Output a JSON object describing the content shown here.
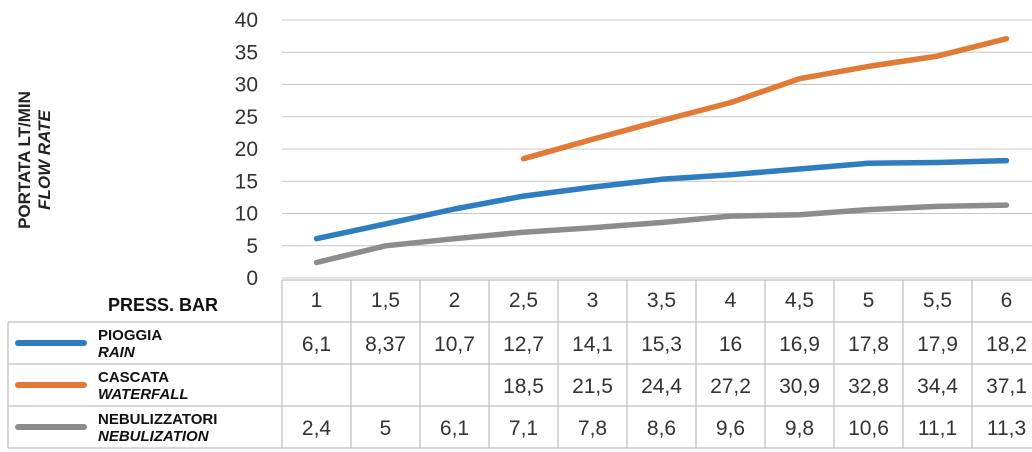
{
  "chart_data": {
    "type": "line",
    "ylabel": "PORTATA  LT/MIN",
    "ylabel_sub": "FLOW RATE",
    "xlabel": "PRESS. BAR",
    "ylim": [
      0,
      40
    ],
    "yticks": [
      "0",
      "5",
      "10",
      "15",
      "20",
      "25",
      "30",
      "35",
      "40"
    ],
    "grid": true,
    "categories": [
      "1",
      "1,5",
      "2",
      "2,5",
      "3",
      "3,5",
      "4",
      "4,5",
      "5",
      "5,5",
      "6"
    ],
    "x": [
      1,
      1.5,
      2,
      2.5,
      3,
      3.5,
      4,
      4.5,
      5,
      5.5,
      6
    ],
    "series": [
      {
        "name": "PIOGGIA",
        "name_en": "RAIN",
        "color": "#2E7DC1",
        "values": [
          6.1,
          8.37,
          10.7,
          12.7,
          14.1,
          15.3,
          16,
          16.9,
          17.8,
          17.9,
          18.2
        ],
        "labels": [
          "6,1",
          "8,37",
          "10,7",
          "12,7",
          "14,1",
          "15,3",
          "16",
          "16,9",
          "17,8",
          "17,9",
          "18,2"
        ]
      },
      {
        "name": "CASCATA",
        "name_en": "WATERFALL",
        "color": "#E07A34",
        "values": [
          null,
          null,
          null,
          18.5,
          21.5,
          24.4,
          27.2,
          30.9,
          32.8,
          34.4,
          37.1
        ],
        "labels": [
          "",
          "",
          "",
          "18,5",
          "21,5",
          "24,4",
          "27,2",
          "30,9",
          "32,8",
          "34,4",
          "37,1"
        ]
      },
      {
        "name": "NEBULIZZATORI",
        "name_en": "NEBULIZATION",
        "color": "#8C8C8C",
        "values": [
          2.4,
          5,
          6.1,
          7.1,
          7.8,
          8.6,
          9.6,
          9.8,
          10.6,
          11.1,
          11.3
        ],
        "labels": [
          "2,4",
          "5",
          "6,1",
          "7,1",
          "7,8",
          "8,6",
          "9,6",
          "9,8",
          "10,6",
          "11,1",
          "11,3"
        ]
      }
    ]
  }
}
